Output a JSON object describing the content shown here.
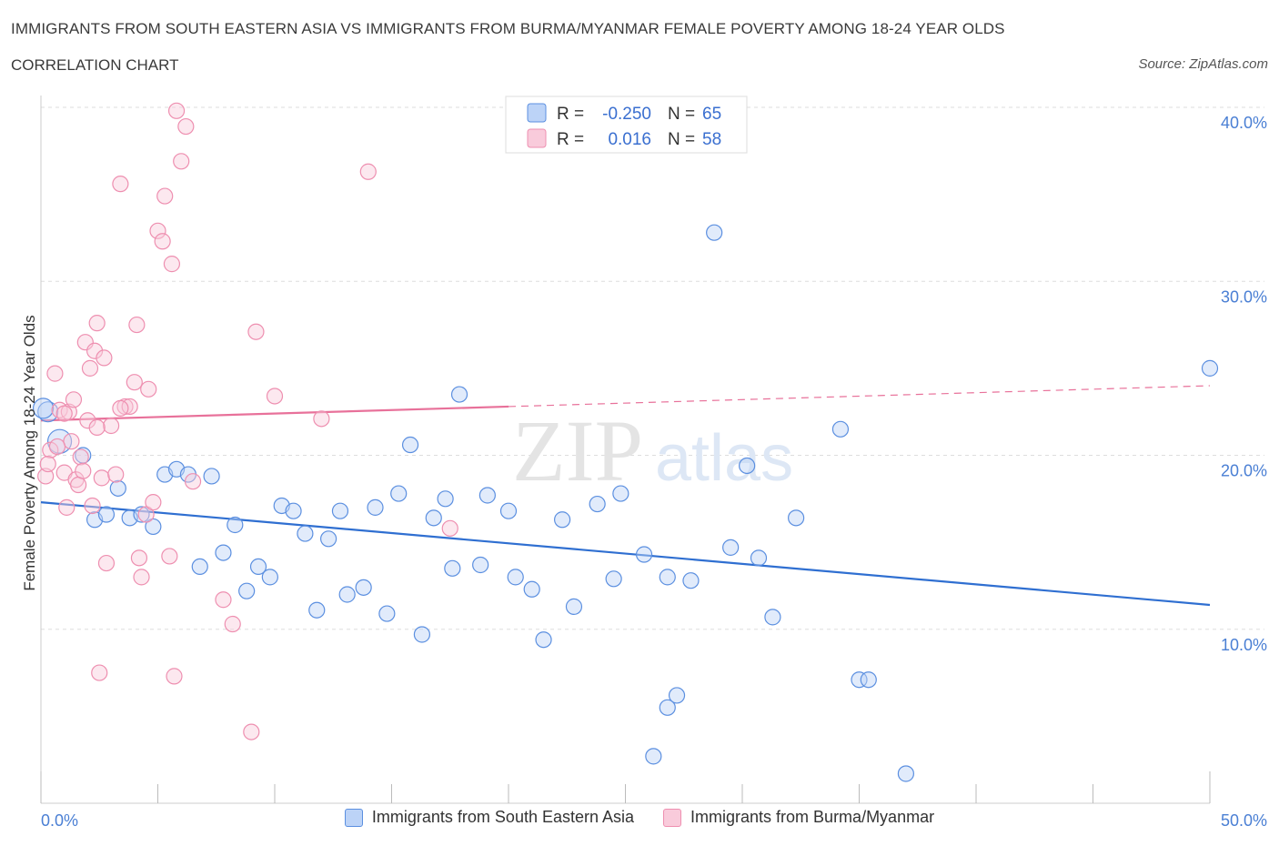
{
  "header": {
    "title": "IMMIGRANTS FROM SOUTH EASTERN ASIA VS IMMIGRANTS FROM BURMA/MYANMAR FEMALE POVERTY AMONG 18-24 YEAR OLDS",
    "subtitle": "CORRELATION CHART",
    "source": "Source: ZipAtlas.com"
  },
  "watermark": {
    "zip": "ZIP",
    "atlas": "atlas"
  },
  "legend": {
    "r_label": "R =",
    "n_label": "N =",
    "rows": [
      {
        "r": "-0.250",
        "n": "65"
      },
      {
        "r": "0.016",
        "n": "58"
      }
    ]
  },
  "chart_data": {
    "type": "scatter",
    "ylabel": "Female Poverty Among 18-24 Year Olds",
    "xlabel": "",
    "xlim": [
      0,
      50
    ],
    "ylim": [
      0,
      40
    ],
    "x_tick_labels": [
      "0.0%",
      "50.0%"
    ],
    "y_ticks": [
      10,
      20,
      30,
      40
    ],
    "y_tick_labels": [
      "10.0%",
      "20.0%",
      "30.0%",
      "40.0%"
    ],
    "grid": "horizontal dashed",
    "legend_position": "top-center",
    "colors": {
      "blue": "#5b8fe0",
      "pink": "#ee8fb0",
      "blue_line": "#2f6fd1",
      "pink_line": "#e8719a"
    },
    "series": [
      {
        "name": "Immigrants from South Eastern Asia",
        "color": "#5b8fe0",
        "trend": {
          "x": [
            0,
            50
          ],
          "y": [
            17.3,
            11.4
          ],
          "dashed_from": null
        },
        "points": [
          [
            0.3,
            22.5
          ],
          [
            0.8,
            20.8
          ],
          [
            1.8,
            20.0
          ],
          [
            2.3,
            16.3
          ],
          [
            2.8,
            16.6
          ],
          [
            3.3,
            18.1
          ],
          [
            3.8,
            16.4
          ],
          [
            4.3,
            16.6
          ],
          [
            4.8,
            15.9
          ],
          [
            5.3,
            18.9
          ],
          [
            5.8,
            19.2
          ],
          [
            6.3,
            18.9
          ],
          [
            6.8,
            13.6
          ],
          [
            7.3,
            18.8
          ],
          [
            7.8,
            14.4
          ],
          [
            8.3,
            16.0
          ],
          [
            8.8,
            12.2
          ],
          [
            9.3,
            13.6
          ],
          [
            9.8,
            13.0
          ],
          [
            10.3,
            17.1
          ],
          [
            10.8,
            16.8
          ],
          [
            11.3,
            15.5
          ],
          [
            11.8,
            11.1
          ],
          [
            12.3,
            15.2
          ],
          [
            12.8,
            16.8
          ],
          [
            13.1,
            12.0
          ],
          [
            13.8,
            12.4
          ],
          [
            14.3,
            17.0
          ],
          [
            14.8,
            10.9
          ],
          [
            15.3,
            17.8
          ],
          [
            15.8,
            20.6
          ],
          [
            16.3,
            9.7
          ],
          [
            16.8,
            16.4
          ],
          [
            17.3,
            17.5
          ],
          [
            17.6,
            13.5
          ],
          [
            17.9,
            23.5
          ],
          [
            18.8,
            13.7
          ],
          [
            19.1,
            17.7
          ],
          [
            20.0,
            16.8
          ],
          [
            20.3,
            13.0
          ],
          [
            21.0,
            12.3
          ],
          [
            21.5,
            9.4
          ],
          [
            22.3,
            16.3
          ],
          [
            22.8,
            11.3
          ],
          [
            23.8,
            17.2
          ],
          [
            24.5,
            12.9
          ],
          [
            24.8,
            17.8
          ],
          [
            25.8,
            14.3
          ],
          [
            26.2,
            2.7
          ],
          [
            26.8,
            13.0
          ],
          [
            26.8,
            5.5
          ],
          [
            27.2,
            6.2
          ],
          [
            27.8,
            12.8
          ],
          [
            28.8,
            32.8
          ],
          [
            29.5,
            14.7
          ],
          [
            30.2,
            19.4
          ],
          [
            30.7,
            14.1
          ],
          [
            31.3,
            10.7
          ],
          [
            32.3,
            16.4
          ],
          [
            34.2,
            21.5
          ],
          [
            35.0,
            7.1
          ],
          [
            35.4,
            7.1
          ],
          [
            37.0,
            1.7
          ],
          [
            50.0,
            25.0
          ],
          [
            0.1,
            22.7
          ]
        ]
      },
      {
        "name": "Immigrants from Burma/Myanmar",
        "color": "#ee8fb0",
        "trend": {
          "x": [
            0,
            50
          ],
          "y": [
            22.0,
            24.0
          ],
          "dashed_from": 20
        },
        "points": [
          [
            0.2,
            18.8
          ],
          [
            0.4,
            20.3
          ],
          [
            0.6,
            24.7
          ],
          [
            0.8,
            22.6
          ],
          [
            1.0,
            19.0
          ],
          [
            1.1,
            17.0
          ],
          [
            1.2,
            22.5
          ],
          [
            1.3,
            20.8
          ],
          [
            1.4,
            23.2
          ],
          [
            1.5,
            18.6
          ],
          [
            1.6,
            18.3
          ],
          [
            1.7,
            19.9
          ],
          [
            1.8,
            19.1
          ],
          [
            1.9,
            26.5
          ],
          [
            2.0,
            22.0
          ],
          [
            2.1,
            25.0
          ],
          [
            2.2,
            17.1
          ],
          [
            2.3,
            26.0
          ],
          [
            2.4,
            27.6
          ],
          [
            2.5,
            7.5
          ],
          [
            2.6,
            18.7
          ],
          [
            2.7,
            25.6
          ],
          [
            2.8,
            13.8
          ],
          [
            3.0,
            21.7
          ],
          [
            3.2,
            18.9
          ],
          [
            3.4,
            35.6
          ],
          [
            3.6,
            22.8
          ],
          [
            3.8,
            22.8
          ],
          [
            4.0,
            24.2
          ],
          [
            4.1,
            27.5
          ],
          [
            4.2,
            14.1
          ],
          [
            4.3,
            13.0
          ],
          [
            4.5,
            16.6
          ],
          [
            4.6,
            23.8
          ],
          [
            4.8,
            17.3
          ],
          [
            5.0,
            32.9
          ],
          [
            5.2,
            32.3
          ],
          [
            5.3,
            34.9
          ],
          [
            5.5,
            14.2
          ],
          [
            5.6,
            31.0
          ],
          [
            5.7,
            7.3
          ],
          [
            5.8,
            39.8
          ],
          [
            6.0,
            36.9
          ],
          [
            6.2,
            38.9
          ],
          [
            6.5,
            18.5
          ],
          [
            7.8,
            11.7
          ],
          [
            8.2,
            10.3
          ],
          [
            9.0,
            4.1
          ],
          [
            9.2,
            27.1
          ],
          [
            10.0,
            23.4
          ],
          [
            12.0,
            22.1
          ],
          [
            14.0,
            36.3
          ],
          [
            17.5,
            15.8
          ],
          [
            0.3,
            19.5
          ],
          [
            1.0,
            22.4
          ],
          [
            2.4,
            21.6
          ],
          [
            3.4,
            22.7
          ],
          [
            0.7,
            20.5
          ]
        ]
      }
    ]
  }
}
